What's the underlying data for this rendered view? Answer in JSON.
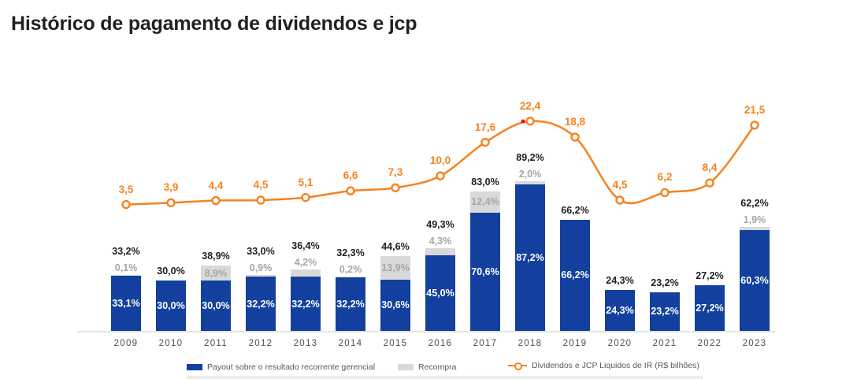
{
  "title": "Histórico de pagamento de dividendos e jcp",
  "colors": {
    "blue": "#13409e",
    "orange": "#f6821f",
    "gray_bar": "#d9d9d9",
    "gray_label": "#a6a6a6",
    "total_label": "#1f1f1f",
    "inside_label": "#ffffff",
    "year_label": "#4d4d4d",
    "legend_text": "#595959",
    "axis": "#e5e5e5",
    "red_dot": "#e8112d"
  },
  "legend": [
    {
      "label": "Payout sobre o resultado recorrente gerencial",
      "swatch": "blue-square"
    },
    {
      "label": "Recompra",
      "swatch": "gray-square"
    },
    {
      "label": "Dividendos e JCP Liquidos de IR (R$ bilhões)",
      "swatch": "orange-line-marker"
    }
  ],
  "chart_data": {
    "type": "bar",
    "subtype": "stacked-bar-with-line-combo",
    "categories": [
      "2009",
      "2010",
      "2011",
      "2012",
      "2013",
      "2014",
      "2015",
      "2016",
      "2017",
      "2018",
      "2019",
      "2020",
      "2021",
      "2022",
      "2023"
    ],
    "bar_unit": "%",
    "line_unit": "R$ bilhões",
    "grid": false,
    "y_axis_visible": false,
    "legend_position": "bottom",
    "series": [
      {
        "name": "Payout sobre o resultado recorrente gerencial",
        "type": "bar",
        "color_key": "blue",
        "values": [
          33.1,
          30.0,
          30.0,
          32.2,
          32.2,
          32.2,
          30.6,
          45.0,
          70.6,
          87.2,
          66.2,
          24.3,
          23.2,
          27.2,
          60.3
        ],
        "labels": [
          "33,1%",
          "30,0%",
          "30,0%",
          "32,2%",
          "32,2%",
          "32,2%",
          "30,6%",
          "45,0%",
          "70,6%",
          "87,2%",
          "66,2%",
          "24,3%",
          "23,2%",
          "27,2%",
          "60,3%"
        ]
      },
      {
        "name": "Recompra",
        "type": "bar",
        "color_key": "gray_bar",
        "values": [
          0.1,
          null,
          8.9,
          0.9,
          4.2,
          0.2,
          13.9,
          4.3,
          12.4,
          2.0,
          null,
          null,
          null,
          null,
          1.9
        ],
        "labels": [
          "0,1%",
          null,
          "8,9%",
          "0,9%",
          "4,2%",
          "0,2%",
          "13,9%",
          "4,3%",
          "12,4%",
          "2,0%",
          null,
          null,
          null,
          null,
          "1,9%"
        ]
      },
      {
        "name": "Dividendos e JCP Liquidos de IR (R$ bilhões)",
        "type": "line",
        "color_key": "orange",
        "values": [
          3.5,
          3.9,
          4.4,
          4.5,
          5.1,
          6.6,
          7.3,
          10.0,
          17.6,
          22.4,
          18.8,
          4.5,
          6.2,
          8.4,
          21.5
        ],
        "labels": [
          "3,5",
          "3,9",
          "4,4",
          "4,5",
          "5,1",
          "6,6",
          "7,3",
          "10,0",
          "17,6",
          "22,4",
          "18,8",
          "4,5",
          "6,2",
          "8,4",
          "21,5"
        ]
      }
    ],
    "stack_total_labels": [
      "33,2%",
      "30,0%",
      "38,9%",
      "33,0%",
      "36,4%",
      "32,3%",
      "44,6%",
      "49,3%",
      "83,0%",
      "89,2%",
      "66,2%",
      "24,3%",
      "23,2%",
      "27,2%",
      "62,2%"
    ]
  }
}
